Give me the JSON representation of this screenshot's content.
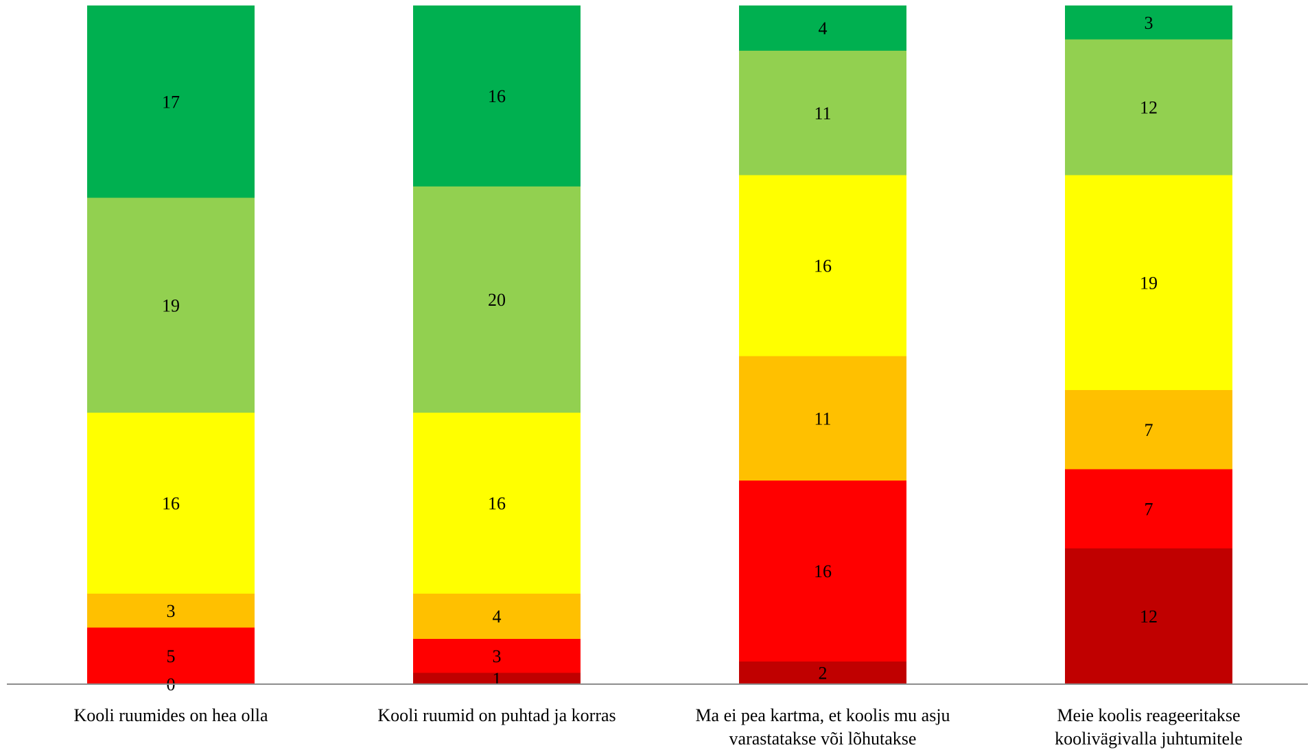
{
  "chart_data": {
    "type": "bar",
    "stacked": true,
    "categories": [
      [
        "Kooli ruumides on hea olla"
      ],
      [
        "Kooli ruumid on puhtad ja korras"
      ],
      [
        "Ma ei pea kartma, et koolis mu asju",
        "varastatakse või lõhutakse"
      ],
      [
        "Meie koolis reageeritakse",
        "koolivägivalla juhtumitele"
      ]
    ],
    "series": [
      {
        "color": "#c00000",
        "values": [
          0,
          1,
          2,
          12
        ]
      },
      {
        "color": "#ff0000",
        "values": [
          5,
          3,
          16,
          7
        ]
      },
      {
        "color": "#ffc000",
        "values": [
          3,
          4,
          11,
          7
        ]
      },
      {
        "color": "#ffff00",
        "values": [
          16,
          16,
          16,
          19
        ]
      },
      {
        "color": "#92d050",
        "values": [
          19,
          20,
          11,
          12
        ]
      },
      {
        "color": "#00b050",
        "values": [
          17,
          16,
          4,
          3
        ]
      }
    ],
    "ylim": [
      0,
      60
    ],
    "legend": "none",
    "grid": false,
    "data_labels": true
  }
}
